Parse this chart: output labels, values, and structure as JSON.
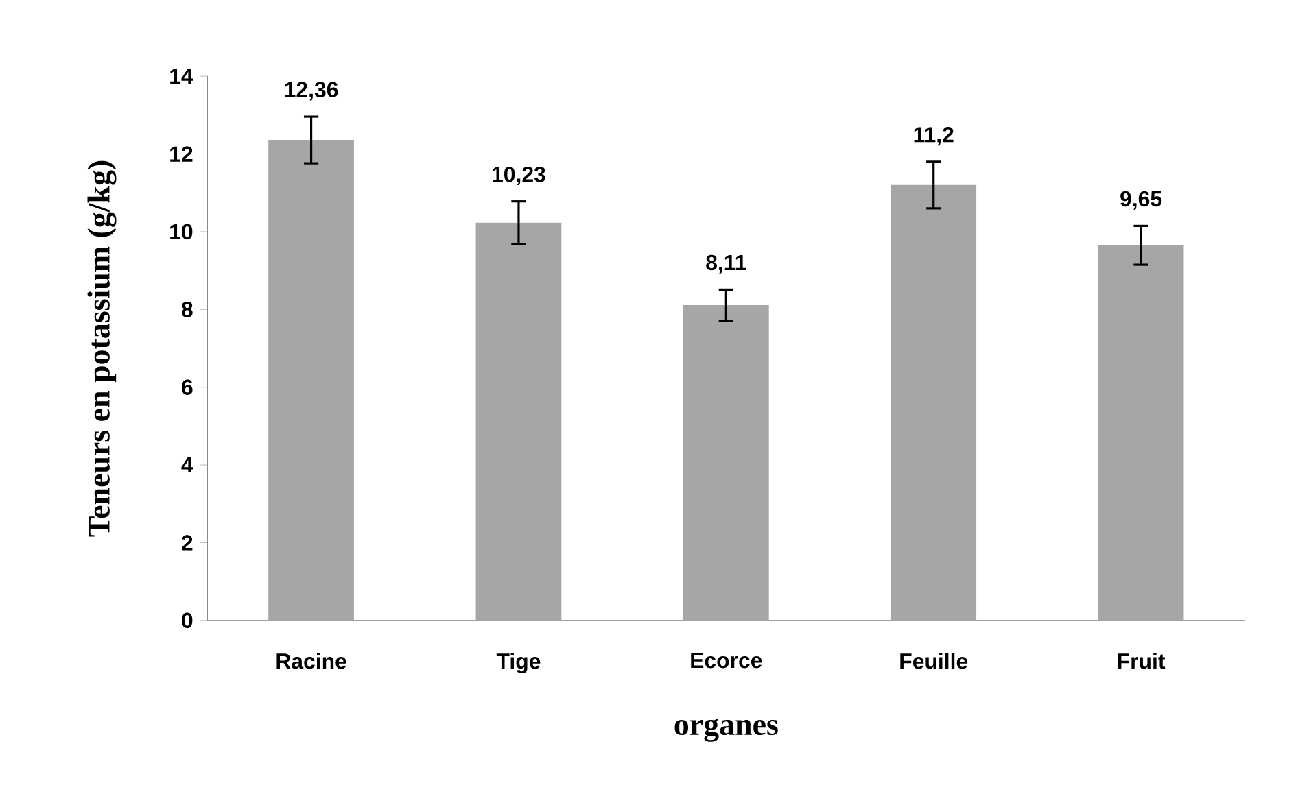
{
  "chart_data": {
    "type": "bar",
    "xlabel": "organes",
    "ylabel": "Teneurs en potassium (g/kg)",
    "categories": [
      "Racine",
      "Tige",
      "Ecorce",
      "Feuille",
      "Fruit"
    ],
    "values": [
      12.36,
      10.23,
      8.11,
      11.2,
      9.65
    ],
    "errors": [
      0.6,
      0.55,
      0.4,
      0.6,
      0.5
    ],
    "value_labels": [
      "12,36",
      "10,23",
      "8,11",
      "11,2",
      "9,65"
    ],
    "color": "#a6a6a6",
    "ylim": [
      0,
      14
    ],
    "yticks": [
      0,
      2,
      4,
      6,
      8,
      10,
      12,
      14
    ]
  }
}
